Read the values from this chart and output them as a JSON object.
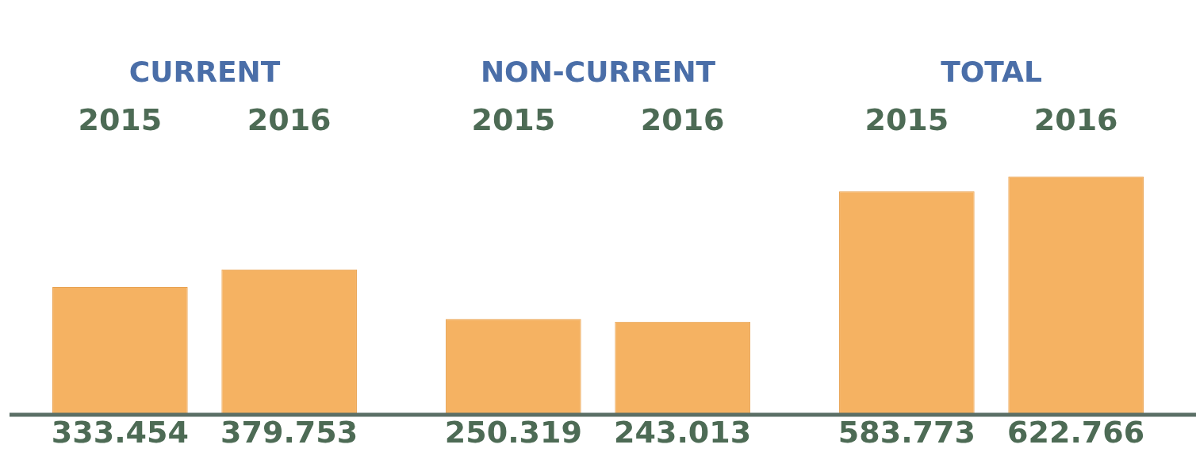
{
  "chart_data": {
    "type": "bar",
    "categories": [
      "CURRENT",
      "NON-CURRENT",
      "TOTAL"
    ],
    "series": [
      {
        "name": "2015",
        "color": "#f5b262",
        "values": [
          333.454,
          250.319,
          583.773
        ]
      },
      {
        "name": "2016",
        "color": "#f5b262",
        "values": [
          379.753,
          243.013,
          622.766
        ]
      }
    ],
    "data_labels": true
  }
}
